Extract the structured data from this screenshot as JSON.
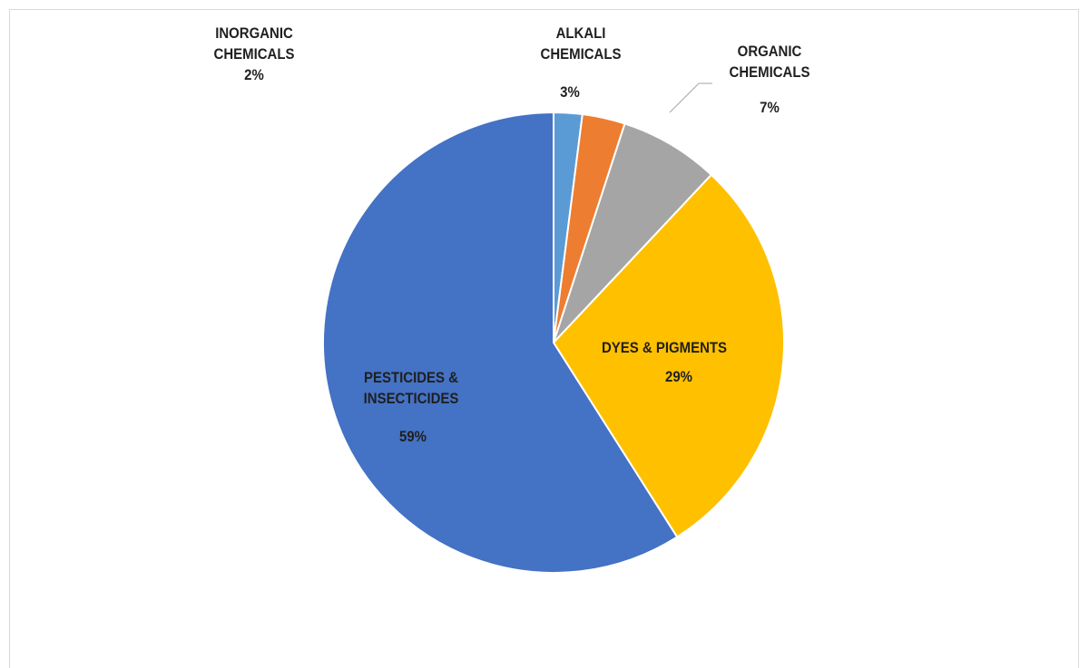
{
  "chart_data": {
    "type": "pie",
    "categories": [
      "INORGANIC CHEMICALS",
      "ALKALI CHEMICALS",
      "ORGANIC CHEMICALS",
      "DYES & PIGMENTS",
      "PESTICIDES & INSECTICIDES"
    ],
    "values": [
      2,
      3,
      7,
      29,
      59
    ],
    "value_labels": [
      "2%",
      "3%",
      "7%",
      "29%",
      "59%"
    ],
    "colors": [
      "#5b9bd5",
      "#ed7d31",
      "#a5a5a5",
      "#ffc000",
      "#4472c4"
    ]
  }
}
